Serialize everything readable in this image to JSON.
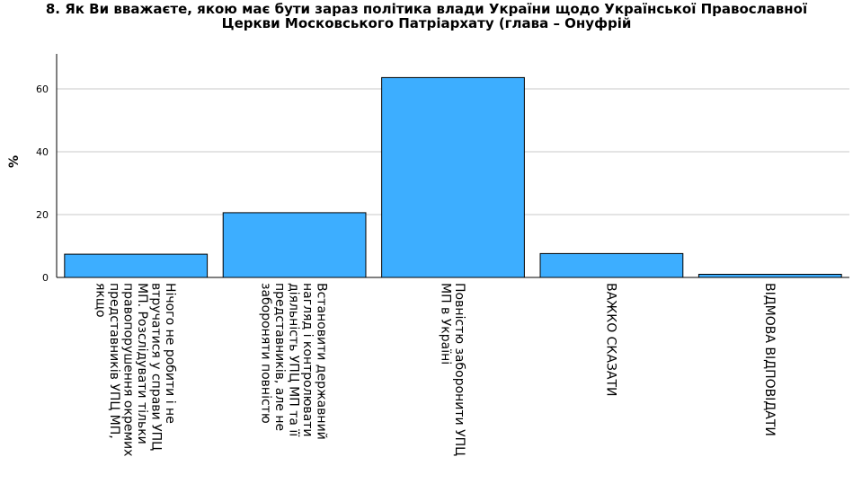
{
  "chart_data": {
    "type": "bar",
    "title_lines": [
      "8. Як Ви вважаєте, якою має бути зараз політика влади України щодо Української Православної",
      "Церкви Московського Патріархату (глава – Онуфрій"
    ],
    "ylabel": "%",
    "ylim": [
      0,
      70
    ],
    "yticks": [
      0,
      20,
      40,
      60
    ],
    "grid": true,
    "bar_color": "#3DAEFF",
    "categories": [
      [
        "Нічого не робити і не",
        "втручатися у справи УПЦ",
        "МП. Розслідувати тільки",
        "правопорушення окремих",
        "представників УПЦ МП,",
        "якщо"
      ],
      [
        "Встановити державний",
        "нагляд і контролювати",
        "діяльність УПЦ МП та її",
        "представників, але не",
        "забороняти повністю"
      ],
      [
        "Повністю заборонити УПЦ",
        "МП в Україні"
      ],
      [
        "ВАЖКО СКАЗАТИ"
      ],
      [
        "ВІДМОВА ВІДПОВІДАТИ"
      ]
    ],
    "values": [
      7.4,
      20.6,
      63.6,
      7.6,
      1.0
    ]
  }
}
